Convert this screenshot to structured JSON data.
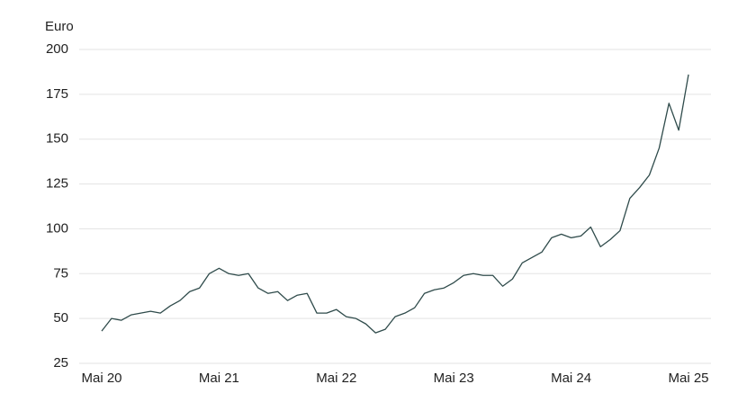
{
  "chart_data": {
    "type": "line",
    "y_label": "Euro",
    "categories": [
      "Mai 20",
      null,
      null,
      null,
      null,
      null,
      null,
      null,
      null,
      null,
      null,
      null,
      "Mai 21",
      null,
      null,
      null,
      null,
      null,
      null,
      null,
      null,
      null,
      null,
      null,
      "Mai 22",
      null,
      null,
      null,
      null,
      null,
      null,
      null,
      null,
      null,
      null,
      null,
      "Mai 23",
      null,
      null,
      null,
      null,
      null,
      null,
      null,
      null,
      null,
      null,
      null,
      "Mai 24",
      null,
      null,
      null,
      null,
      null,
      null,
      null,
      null,
      null,
      null,
      null,
      "Mai 25"
    ],
    "values": [
      43,
      50,
      49,
      52,
      53,
      54,
      53,
      57,
      60,
      65,
      67,
      75,
      78,
      75,
      74,
      75,
      67,
      64,
      65,
      60,
      63,
      64,
      53,
      53,
      55,
      51,
      50,
      47,
      42,
      44,
      51,
      53,
      56,
      64,
      66,
      67,
      70,
      74,
      75,
      74,
      74,
      68,
      72,
      81,
      84,
      87,
      95,
      97,
      95,
      96,
      101,
      90,
      94,
      99,
      117,
      123,
      130,
      145,
      170,
      155,
      186
    ],
    "color": "#2f4b4b",
    "ylim": [
      25,
      200
    ],
    "yticks": [
      25,
      50,
      75,
      100,
      125,
      150,
      175,
      200
    ],
    "grid": true
  }
}
